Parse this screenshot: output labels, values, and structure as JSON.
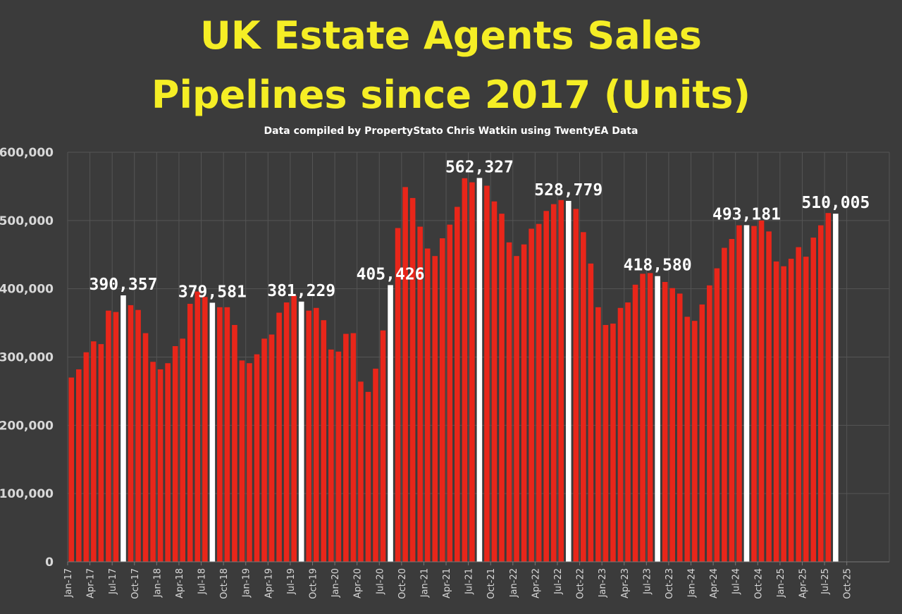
{
  "title_line1": "UK Estate Agents Sales",
  "title_line2": "Pipelines since 2017 (Units)",
  "subtitle": "Data compiled by PropertyStato Chris Watkin using TwentyEA Data",
  "colors": {
    "bar": "#e8261a",
    "highlight": "#ffffff",
    "title": "#f5ee25",
    "background": "#3b3b3b",
    "grid": "#555555"
  },
  "chart_data": {
    "type": "bar",
    "ylim": [
      0,
      600000
    ],
    "yticks": [
      {
        "value": 0,
        "label": "0"
      },
      {
        "value": 100000,
        "label": "100,000"
      },
      {
        "value": 200000,
        "label": "200,000"
      },
      {
        "value": 300000,
        "label": "300,000"
      },
      {
        "value": 400000,
        "label": "400,000"
      },
      {
        "value": 500000,
        "label": "500,000"
      },
      {
        "value": 600000,
        "label": "600,000"
      }
    ],
    "grid": true,
    "categories": [
      "Jan-17",
      "Feb-17",
      "Mar-17",
      "Apr-17",
      "May-17",
      "Jun-17",
      "Jul-17",
      "Aug-17",
      "Sep-17",
      "Oct-17",
      "Nov-17",
      "Dec-17",
      "Jan-18",
      "Feb-18",
      "Mar-18",
      "Apr-18",
      "May-18",
      "Jun-18",
      "Jul-18",
      "Aug-18",
      "Sep-18",
      "Oct-18",
      "Nov-18",
      "Dec-18",
      "Jan-19",
      "Feb-19",
      "Mar-19",
      "Apr-19",
      "May-19",
      "Jun-19",
      "Jul-19",
      "Aug-19",
      "Sep-19",
      "Oct-19",
      "Nov-19",
      "Dec-19",
      "Jan-20",
      "Feb-20",
      "Mar-20",
      "Apr-20",
      "May-20",
      "Jun-20",
      "Jul-20",
      "Aug-20",
      "Sep-20",
      "Oct-20",
      "Nov-20",
      "Dec-20",
      "Jan-21",
      "Feb-21",
      "Mar-21",
      "Apr-21",
      "May-21",
      "Jun-21",
      "Jul-21",
      "Aug-21",
      "Sep-21",
      "Oct-21",
      "Nov-21",
      "Dec-21",
      "Jan-22",
      "Feb-22",
      "Mar-22",
      "Apr-22",
      "May-22",
      "Jun-22",
      "Jul-22",
      "Aug-22",
      "Sep-22",
      "Oct-22",
      "Nov-22",
      "Dec-22",
      "Jan-23",
      "Feb-23",
      "Mar-23",
      "Apr-23",
      "May-23",
      "Jun-23",
      "Jul-23",
      "Aug-23",
      "Sep-23",
      "Oct-23",
      "Nov-23",
      "Dec-23",
      "Jan-24",
      "Feb-24",
      "Mar-24",
      "Apr-24",
      "May-24",
      "Jun-24",
      "Jul-24",
      "Aug-24",
      "Sep-24",
      "Oct-24",
      "Nov-24",
      "Dec-24",
      "Jan-25",
      "Feb-25",
      "Mar-25",
      "Apr-25",
      "May-25",
      "Jun-25",
      "Jul-25",
      "Aug-25"
    ],
    "values": [
      270000,
      282000,
      307000,
      323000,
      319000,
      368000,
      366000,
      390357,
      376000,
      369000,
      335000,
      293000,
      282000,
      291000,
      316000,
      327000,
      378000,
      396000,
      388000,
      379581,
      373000,
      373000,
      347000,
      295000,
      291000,
      304000,
      327000,
      333000,
      365000,
      380000,
      390000,
      381229,
      368000,
      372000,
      354000,
      311000,
      308000,
      334000,
      335000,
      264000,
      249000,
      283000,
      339000,
      405426,
      489000,
      549000,
      533000,
      491000,
      459000,
      448000,
      474000,
      494000,
      520000,
      562000,
      556000,
      562327,
      551000,
      528000,
      510000,
      468000,
      448000,
      465000,
      488000,
      495000,
      514000,
      524000,
      530000,
      528779,
      517000,
      483000,
      437000,
      373000,
      347000,
      349000,
      372000,
      380000,
      406000,
      422000,
      423000,
      418580,
      410000,
      401000,
      393000,
      359000,
      353000,
      377000,
      405000,
      430000,
      460000,
      473000,
      493000,
      493181,
      492000,
      500000,
      484000,
      440000,
      433000,
      444000,
      461000,
      447000,
      475000,
      493000,
      511000,
      510005
    ],
    "xtick_labels": [
      "Jan-17",
      "Apr-17",
      "Jul-17",
      "Oct-17",
      "Jan-18",
      "Apr-18",
      "Jul-18",
      "Oct-18",
      "Jan-19",
      "Apr-19",
      "Jul-19",
      "Oct-19",
      "Jan-20",
      "Apr-20",
      "Jul-20",
      "Oct-20",
      "Jan-21",
      "Apr-21",
      "Jul-21",
      "Oct-21",
      "Jan-22",
      "Apr-22",
      "Jul-22",
      "Oct-22",
      "Jan-23",
      "Apr-23",
      "Jul-23",
      "Oct-23",
      "Jan-24",
      "Apr-24",
      "Jul-24",
      "Oct-24",
      "Jan-25",
      "Apr-25",
      "Jul-25",
      "Oct-25"
    ],
    "highlighted": [
      {
        "category": "Aug-17",
        "value": 390357,
        "label": "390,357"
      },
      {
        "category": "Aug-18",
        "value": 379581,
        "label": "379,581"
      },
      {
        "category": "Aug-19",
        "value": 381229,
        "label": "381,229"
      },
      {
        "category": "Aug-20",
        "value": 405426,
        "label": "405,426"
      },
      {
        "category": "Aug-21",
        "value": 562327,
        "label": "562,327"
      },
      {
        "category": "Aug-22",
        "value": 528779,
        "label": "528,779"
      },
      {
        "category": "Aug-23",
        "value": 418580,
        "label": "418,580"
      },
      {
        "category": "Aug-24",
        "value": 493181,
        "label": "493,181"
      },
      {
        "category": "Aug-25",
        "value": 510005,
        "label": "510,005"
      }
    ]
  }
}
